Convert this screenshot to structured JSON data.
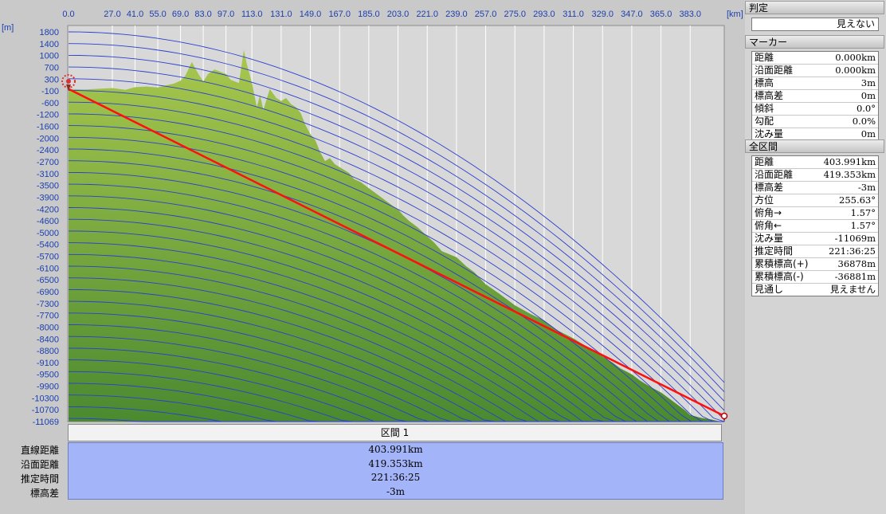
{
  "chart_data": {
    "type": "area",
    "title": "",
    "x_unit": "[km]",
    "y_unit": "[m]",
    "x_ticks": [
      "0.0",
      "27.0",
      "41.0",
      "55.0",
      "69.0",
      "83.0",
      "97.0",
      "113.0",
      "131.0",
      "149.0",
      "167.0",
      "185.0",
      "203.0",
      "221.0",
      "239.0",
      "257.0",
      "275.0",
      "293.0",
      "311.0",
      "329.0",
      "347.0",
      "365.0",
      "383.0"
    ],
    "x_tick_values": [
      0,
      27,
      41,
      55,
      69,
      83,
      97,
      113,
      131,
      149,
      167,
      185,
      203,
      221,
      239,
      257,
      275,
      293,
      311,
      329,
      347,
      365,
      383
    ],
    "y_ticks": [
      "1800",
      "1400",
      "1000",
      "700",
      "300",
      "-100",
      "-600",
      "-1200",
      "-1600",
      "-2000",
      "-2400",
      "-2700",
      "-3100",
      "-3500",
      "-3900",
      "-4200",
      "-4600",
      "-5000",
      "-5400",
      "-5700",
      "-6100",
      "-6500",
      "-6900",
      "-7300",
      "-7700",
      "-8000",
      "-8400",
      "-8800",
      "-9100",
      "-9500",
      "-9900",
      "-10300",
      "-10700",
      "-11069"
    ],
    "xlim": [
      0,
      403.991
    ],
    "ylim": [
      -11069,
      2100
    ],
    "terrain": {
      "x": [
        0,
        10,
        20,
        27,
        35,
        41,
        48,
        55,
        60,
        65,
        69,
        72,
        76,
        80,
        83,
        86,
        90,
        97,
        100,
        105,
        108,
        110,
        113,
        116,
        118,
        120,
        124,
        128,
        131,
        134,
        137,
        140,
        143,
        146,
        149,
        152,
        155,
        158,
        161,
        164,
        167,
        170,
        173,
        176,
        180,
        185,
        190,
        195,
        200,
        203,
        206,
        210,
        215,
        221,
        225,
        230,
        239,
        245,
        250,
        257,
        265,
        275,
        285,
        293,
        300,
        311,
        320,
        329,
        335,
        340,
        347,
        352,
        358,
        365,
        370,
        375,
        380,
        383,
        390,
        396,
        400,
        403.991
      ],
      "y": [
        0,
        -20,
        10,
        30,
        -30,
        60,
        80,
        50,
        120,
        180,
        280,
        450,
        900,
        500,
        250,
        500,
        650,
        500,
        300,
        200,
        1300,
        800,
        200,
        -600,
        -200,
        -700,
        0,
        -300,
        -400,
        -300,
        -500,
        -600,
        -800,
        -1200,
        -1500,
        -1700,
        -2100,
        -2400,
        -2300,
        -2500,
        -2600,
        -2700,
        -2800,
        -3000,
        -3100,
        -3300,
        -3500,
        -3700,
        -3900,
        -4000,
        -4200,
        -4400,
        -4600,
        -4900,
        -5100,
        -5400,
        -5600,
        -5900,
        -6100,
        -6500,
        -6800,
        -7200,
        -7500,
        -7700,
        -8000,
        -8300,
        -8600,
        -8900,
        -9100,
        -9300,
        -9500,
        -9700,
        -9900,
        -10100,
        -10300,
        -10500,
        -10700,
        -10850,
        -10950,
        -11000,
        -11050,
        -11069
      ]
    },
    "sight_line": {
      "start": [
        0,
        0
      ],
      "end": [
        403.991,
        -11069
      ]
    },
    "grid": true
  },
  "section": {
    "title": "区間 1"
  },
  "summary": {
    "labels": [
      "直線距離",
      "沿面距離",
      "推定時間",
      "標高差"
    ],
    "values": [
      "403.991km",
      "419.353km",
      "221:36:25",
      "-3m"
    ]
  },
  "panel": {
    "verdict_header": "判定",
    "verdict_value": "見えない",
    "marker_header": "マーカー",
    "marker_rows": [
      {
        "label": "距離",
        "value": "0.000km"
      },
      {
        "label": "沿面距離",
        "value": "0.000km"
      },
      {
        "label": "標高",
        "value": "3m"
      },
      {
        "label": "標高差",
        "value": "0m"
      },
      {
        "label": "傾斜",
        "value": "0.0°"
      },
      {
        "label": "勾配",
        "value": "0.0%"
      },
      {
        "label": "沈み量",
        "value": "0m"
      }
    ],
    "all_header": "全区間",
    "all_rows": [
      {
        "label": "距離",
        "value": "403.991km"
      },
      {
        "label": "沿面距離",
        "value": "419.353km"
      },
      {
        "label": "標高差",
        "value": "-3m"
      },
      {
        "label": "方位",
        "value": "255.63°"
      },
      {
        "label": "俯角→",
        "value": "1.57°"
      },
      {
        "label": "俯角←",
        "value": "1.57°"
      },
      {
        "label": "沈み量",
        "value": "-11069m"
      },
      {
        "label": "推定時間",
        "value": "221:36:25"
      },
      {
        "label": "累積標高(+)",
        "value": "36878m"
      },
      {
        "label": "累積標高(-)",
        "value": "-36881m"
      },
      {
        "label": "見通し",
        "value": "見えません"
      }
    ]
  },
  "colors": {
    "plot_bg": "#d7d7d7",
    "terrain_top": "#a8c64d",
    "terrain_bottom": "#4d8a2e",
    "grid_blue": "#2b3fd0",
    "sight_line": "#ff0000"
  }
}
